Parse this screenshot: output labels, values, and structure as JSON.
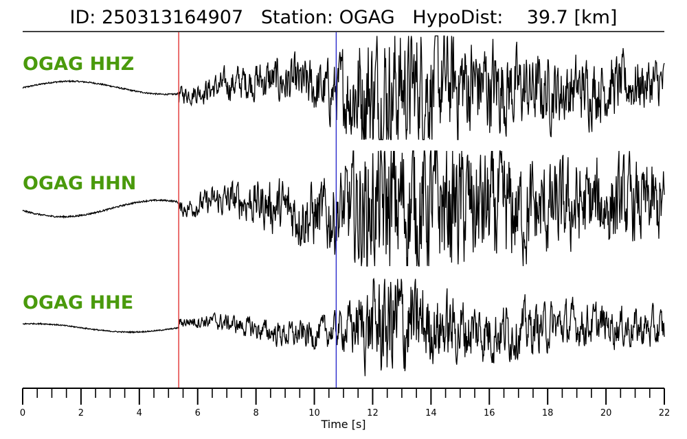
{
  "header": {
    "id_label": "ID:",
    "id_value": "250313164907",
    "station_label": "Station:",
    "station_value": "OGAG",
    "hypo_label": "HypoDist:",
    "hypo_value": "39.7",
    "hypo_unit": "[km]"
  },
  "colors": {
    "trace": "#000000",
    "channel_label": "#4a9a0c",
    "p_pick": "#e03030",
    "s_pick": "#2a2acc"
  },
  "chart_data": {
    "type": "line",
    "title": "ID: 250313164907   Station: OGAG   HypoDist:    39.7 [km]",
    "xlabel": "Time [s]",
    "ylabel": "",
    "xlim": [
      0,
      22
    ],
    "x_ticks": [
      0,
      2,
      4,
      6,
      8,
      10,
      12,
      14,
      16,
      18,
      20,
      22
    ],
    "x_minor_step": 0.5,
    "grid": false,
    "legend": "none",
    "picks": [
      {
        "kind": "P",
        "time": 5.35
      },
      {
        "kind": "S",
        "time": 10.75
      }
    ],
    "series": [
      {
        "name": "OGAG HHZ",
        "onset_time": 5.35,
        "arrival_time": 10.75,
        "pre_noise": 0.07,
        "mid_amp": 0.35,
        "post_amp": 1.0,
        "env": [
          [
            0,
            0.22
          ],
          [
            3.3,
            0.22
          ],
          [
            5.3,
            0.22
          ],
          [
            5.4,
            0.12
          ],
          [
            10.8,
            0.45
          ],
          [
            11.5,
            0.9
          ],
          [
            12.5,
            1.0
          ],
          [
            13.5,
            0.9
          ],
          [
            14.5,
            0.8
          ],
          [
            16,
            0.7
          ],
          [
            17,
            0.55
          ],
          [
            18,
            0.5
          ],
          [
            20,
            0.45
          ],
          [
            22,
            0.35
          ]
        ]
      },
      {
        "name": "OGAG HHN",
        "onset_time": 5.35,
        "arrival_time": 10.75,
        "pre_noise": 0.07,
        "mid_amp": 0.4,
        "post_amp": 1.0,
        "env": [
          [
            0,
            0.25
          ],
          [
            3.3,
            0.25
          ],
          [
            5.3,
            0.25
          ],
          [
            5.4,
            0.1
          ],
          [
            10.8,
            0.5
          ],
          [
            11.5,
            0.8
          ],
          [
            12.5,
            1.0
          ],
          [
            13.5,
            0.95
          ],
          [
            14.5,
            0.85
          ],
          [
            16,
            0.8
          ],
          [
            17,
            0.65
          ],
          [
            18,
            0.6
          ],
          [
            20,
            0.55
          ],
          [
            22,
            0.5
          ]
        ]
      },
      {
        "name": "OGAG HHE",
        "onset_time": 5.35,
        "arrival_time": 10.75,
        "pre_noise": 0.06,
        "mid_amp": 0.2,
        "post_amp": 1.0,
        "env": [
          [
            0,
            0.15
          ],
          [
            3.3,
            0.15
          ],
          [
            5.3,
            0.15
          ],
          [
            5.4,
            0.08
          ],
          [
            10.8,
            0.25
          ],
          [
            11.5,
            0.5
          ],
          [
            12.7,
            1.0
          ],
          [
            13.2,
            0.8
          ],
          [
            14,
            0.55
          ],
          [
            16,
            0.45
          ],
          [
            18,
            0.35
          ],
          [
            20,
            0.3
          ],
          [
            22,
            0.3
          ]
        ]
      }
    ]
  }
}
